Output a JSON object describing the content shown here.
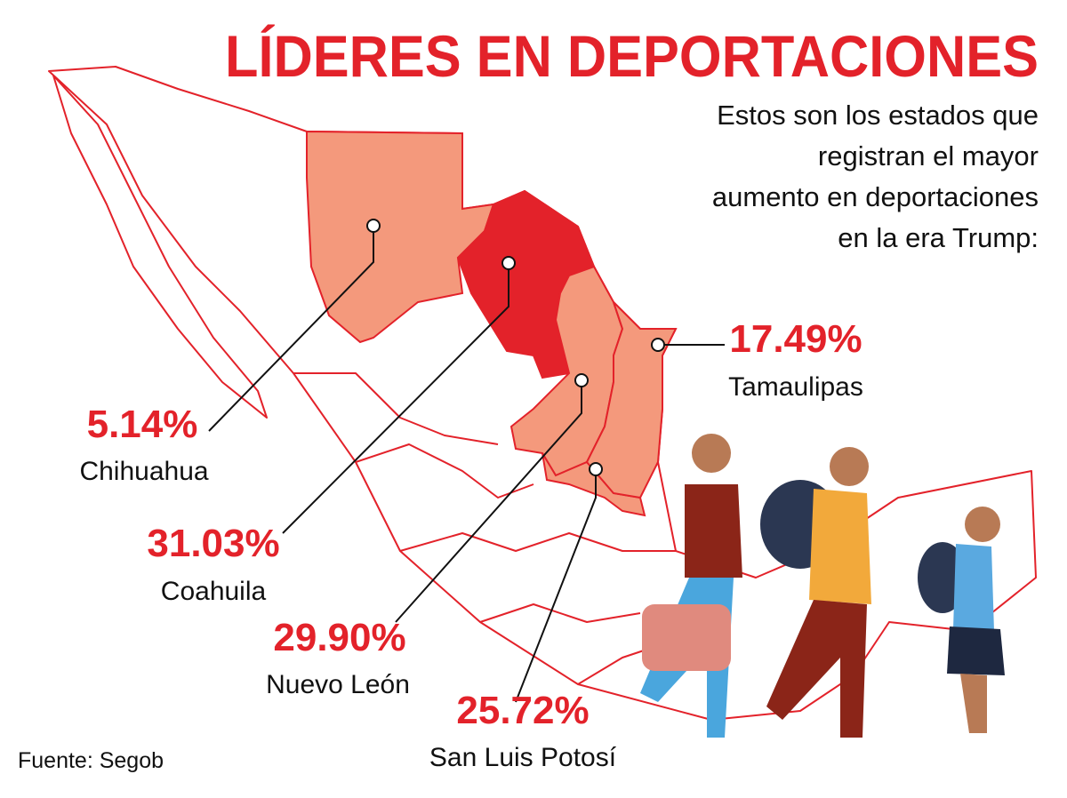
{
  "header": {
    "title": "LÍDERES EN DEPORTACIONES",
    "subtitle": [
      "Estos son los estados que",
      "registran el mayor",
      "aumento en deportaciones",
      "en la era Trump:"
    ]
  },
  "states": [
    {
      "name": "Chihuahua",
      "value": "5.14%",
      "color": "#f4997c"
    },
    {
      "name": "Coahuila",
      "value": "31.03%",
      "color": "#e3222a"
    },
    {
      "name": "Nuevo León",
      "value": "29.90%",
      "color": "#f4997c"
    },
    {
      "name": "San Luis Potosí",
      "value": "25.72%",
      "color": "#f4997c"
    },
    {
      "name": "Tamaulipas",
      "value": "17.49%",
      "color": "#f4997c"
    }
  ],
  "source": "Fuente: Segob"
}
